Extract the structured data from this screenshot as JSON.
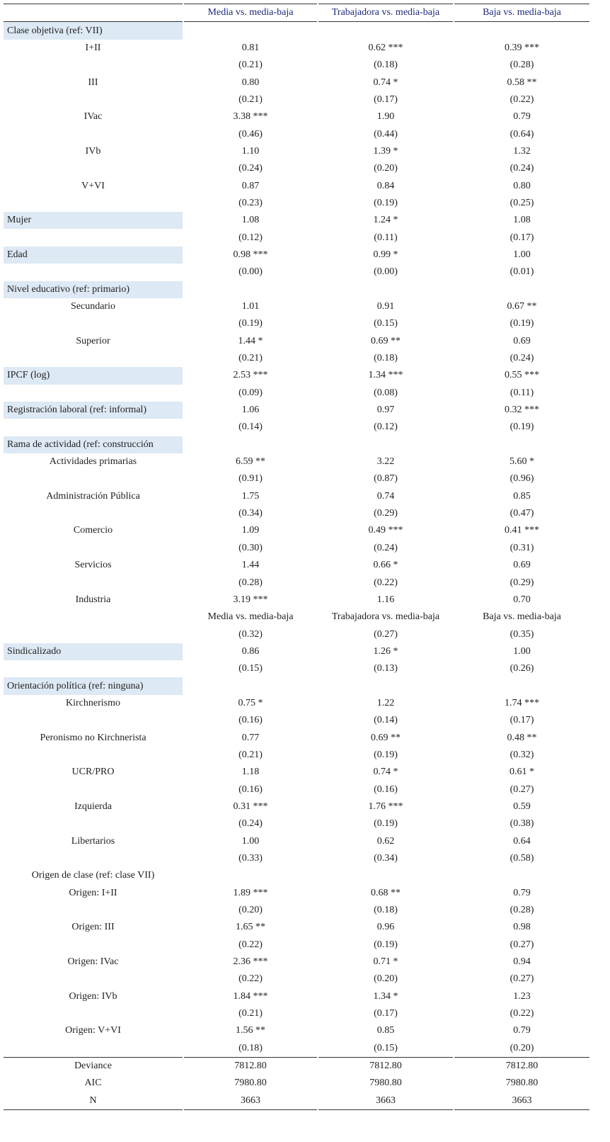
{
  "table": {
    "header": [
      "Media vs. media-baja",
      "Trabajadora vs. media-baja",
      "Baja vs. media-baja"
    ],
    "rows": [
      {
        "cells": [
          "Clase objetiva (ref: VII)"
        ],
        "highlighted": true
      },
      {
        "cells": [
          "I+II",
          "0.81",
          "0.62 ***",
          "0.39 ***"
        ]
      },
      {
        "cells": [
          null,
          "(0.21)",
          "(0.18)",
          "(0.28)"
        ]
      },
      {
        "cells": [
          "III",
          "0.80",
          "0.74 *",
          "0.58 **"
        ]
      },
      {
        "cells": [
          null,
          "(0.21)",
          "(0.17)",
          "(0.22)"
        ]
      },
      {
        "cells": [
          "IVac",
          "3.38 ***",
          "1.90",
          "0.79"
        ]
      },
      {
        "cells": [
          null,
          "(0.46)",
          "(0.44)",
          "(0.64)"
        ]
      },
      {
        "cells": [
          "IVb",
          "1.10",
          "1.39 *",
          "1.32"
        ]
      },
      {
        "cells": [
          null,
          "(0.24)",
          "(0.20)",
          "(0.24)"
        ]
      },
      {
        "cells": [
          "V+VI",
          "0.87",
          "0.84",
          "0.80"
        ]
      },
      {
        "cells": [
          null,
          "(0.23)",
          "(0.19)",
          "(0.25)"
        ]
      },
      {
        "cells": [
          "Mujer",
          "1.08",
          "1.24 *",
          "1.08"
        ],
        "highlighted": true
      },
      {
        "cells": [
          null,
          "(0.12)",
          "(0.11)",
          "(0.17)"
        ]
      },
      {
        "cells": [
          "Edad",
          "0.98 ***",
          "0.99 *",
          "1.00"
        ],
        "highlighted": true
      },
      {
        "cells": [
          null,
          "(0.00)",
          "(0.00)",
          "(0.01)"
        ]
      },
      {
        "cells": [
          "Nivel educativo (ref: primario)"
        ],
        "highlighted": true
      },
      {
        "cells": [
          "Secundario",
          "1.01",
          "0.91",
          "0.67 **"
        ]
      },
      {
        "cells": [
          null,
          "(0.19)",
          "(0.15)",
          "(0.19)"
        ]
      },
      {
        "cells": [
          "Superior",
          "1.44 *",
          "0.69 **",
          "0.69"
        ]
      },
      {
        "cells": [
          null,
          "(0.21)",
          "(0.18)",
          "(0.24)"
        ]
      },
      {
        "cells": [
          "IPCF (log)",
          "2.53 ***",
          "1.34 ***",
          "0.55 ***"
        ],
        "highlighted": true
      },
      {
        "cells": [
          null,
          "(0.09)",
          "(0.08)",
          "(0.11)"
        ]
      },
      {
        "cells": [
          "Registración laboral (ref: informal)",
          "1.06",
          "0.97",
          "0.32 ***"
        ],
        "highlighted": true
      },
      {
        "cells": [
          null,
          "(0.14)",
          "(0.12)",
          "(0.19)"
        ]
      },
      {
        "cells": [
          "Rama de actividad (ref: construcción"
        ],
        "highlighted": true
      },
      {
        "cells": [
          "Actividades primarias",
          "6.59 **",
          "3.22",
          "5.60 *"
        ]
      },
      {
        "cells": [
          null,
          "(0.91)",
          "(0.87)",
          "(0.96)"
        ]
      },
      {
        "cells": [
          "Administración Pública",
          "1.75",
          "0.74",
          "0.85"
        ]
      },
      {
        "cells": [
          null,
          "(0.34)",
          "(0.29)",
          "(0.47)"
        ]
      },
      {
        "cells": [
          "Comercio",
          "1.09",
          "0.49 ***",
          "0.41 ***"
        ]
      },
      {
        "cells": [
          null,
          "(0.30)",
          "(0.24)",
          "(0.31)"
        ]
      },
      {
        "cells": [
          "Servicios",
          "1.44",
          "0.66 *",
          "0.69"
        ]
      },
      {
        "cells": [
          null,
          "(0.28)",
          "(0.22)",
          "(0.29)"
        ]
      },
      {
        "cells": [
          "Industria",
          "3.19 ***",
          "1.16",
          "0.70"
        ]
      },
      {
        "cells": [
          null,
          "Media vs. media-baja",
          "Trabajadora vs. media-baja",
          "Baja vs. media-baja"
        ]
      },
      {
        "cells": [
          null,
          "(0.32)",
          "(0.27)",
          "(0.35)"
        ]
      },
      {
        "cells": [
          "Sindicalizado",
          "0.86",
          "1.26 *",
          "1.00"
        ],
        "highlighted": true
      },
      {
        "cells": [
          null,
          "(0.15)",
          "(0.13)",
          "(0.26)"
        ]
      },
      {
        "cells": [
          "Orientación política (ref: ninguna)"
        ],
        "highlighted": true
      },
      {
        "cells": [
          "Kirchnerismo",
          "0.75 *",
          "1.22",
          "1.74 ***"
        ]
      },
      {
        "cells": [
          null,
          "(0.16)",
          "(0.14)",
          "(0.17)"
        ]
      },
      {
        "cells": [
          "Peronismo no Kirchnerista",
          "0.77",
          "0.69 **",
          "0.48 **"
        ]
      },
      {
        "cells": [
          null,
          "(0.21)",
          "(0.19)",
          "(0.32)"
        ]
      },
      {
        "cells": [
          "UCR/PRO",
          "1.18",
          "0.74 *",
          "0.61 *"
        ]
      },
      {
        "cells": [
          null,
          "(0.16)",
          "(0.16)",
          "(0.27)"
        ]
      },
      {
        "cells": [
          "Izquierda",
          "0.31 ***",
          "1.76 ***",
          "0.59"
        ]
      },
      {
        "cells": [
          null,
          "(0.24)",
          "(0.19)",
          "(0.38)"
        ]
      },
      {
        "cells": [
          "Libertarios",
          "1.00",
          "0.62",
          "0.64"
        ]
      },
      {
        "cells": [
          null,
          "(0.33)",
          "(0.34)",
          "(0.58)"
        ]
      },
      {
        "cells": [
          "Origen de clase (ref: clase VII)"
        ]
      },
      {
        "cells": [
          "Origen: I+II",
          "1.89 ***",
          "0.68 **",
          "0.79"
        ]
      },
      {
        "cells": [
          null,
          "(0.20)",
          "(0.18)",
          "(0.28)"
        ]
      },
      {
        "cells": [
          "Origen: III",
          "1.65 **",
          "0.96",
          "0.98"
        ]
      },
      {
        "cells": [
          null,
          "(0.22)",
          "(0.19)",
          "(0.27)"
        ]
      },
      {
        "cells": [
          "Origen: IVac",
          "2.36 ***",
          "0.71 *",
          "0.94"
        ]
      },
      {
        "cells": [
          null,
          "(0.22)",
          "(0.20)",
          "(0.27)"
        ]
      },
      {
        "cells": [
          "Origen: IVb",
          "1.84 ***",
          "1.34 *",
          "1.23"
        ]
      },
      {
        "cells": [
          null,
          "(0.21)",
          "(0.17)",
          "(0.22)"
        ]
      },
      {
        "cells": [
          "Origen: V+VI",
          "1.56 **",
          "0.85",
          "0.79"
        ]
      },
      {
        "cells": [
          null,
          "(0.18)",
          "(0.15)",
          "(0.20)"
        ]
      }
    ],
    "footer": [
      [
        "Deviance",
        "7812.80",
        "7812.80",
        "7812.80"
      ],
      [
        "AIC",
        "7980.80",
        "7980.80",
        "7980.80"
      ],
      [
        "N",
        "3663",
        "3663",
        "3663"
      ]
    ]
  }
}
